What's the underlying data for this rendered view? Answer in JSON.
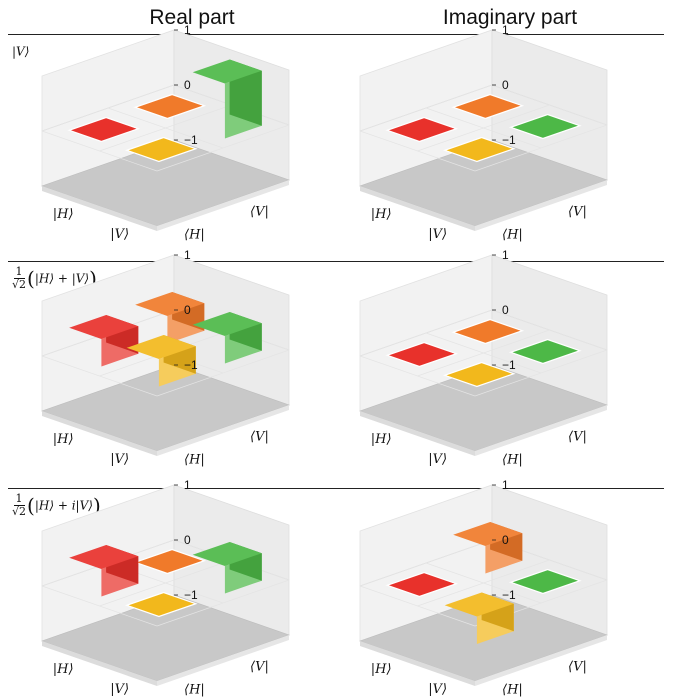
{
  "titles": {
    "real": "Real part",
    "imaginary": "Imaginary part"
  },
  "rows": [
    {
      "label_frac_num": "",
      "label_frac_den": "",
      "label_state": "|V⟩"
    },
    {
      "label_frac_num": "1",
      "label_frac_den": "√2",
      "label_state": "|H⟩ + |V⟩"
    },
    {
      "label_frac_num": "1",
      "label_frac_den": "√2",
      "label_state": "|H⟩ + i|V⟩"
    }
  ],
  "axis": {
    "row_labels": [
      "|H⟩",
      "|V⟩"
    ],
    "col_labels": [
      "⟨H|",
      "⟨V|"
    ],
    "z_ticks": [
      "1",
      "0",
      "−1"
    ]
  },
  "colors": {
    "HH": "#e8312b",
    "HV": "#f07a2a",
    "VH": "#f2b81c",
    "VV": "#4db847"
  },
  "chart_data": [
    {
      "type": "bar3d",
      "row": "|V⟩",
      "part": "real",
      "cells": {
        "HH": 0,
        "HV": 0,
        "VH": 0,
        "VV": 1
      },
      "zlim": [
        -1,
        1
      ]
    },
    {
      "type": "bar3d",
      "row": "|V⟩",
      "part": "imaginary",
      "cells": {
        "HH": 0,
        "HV": 0,
        "VH": 0,
        "VV": 0
      },
      "zlim": [
        -1,
        1
      ]
    },
    {
      "type": "bar3d",
      "row": "(|H⟩+|V⟩)/√2",
      "part": "real",
      "cells": {
        "HH": 0.5,
        "HV": 0.5,
        "VH": 0.5,
        "VV": 0.5
      },
      "zlim": [
        -1,
        1
      ]
    },
    {
      "type": "bar3d",
      "row": "(|H⟩+|V⟩)/√2",
      "part": "imaginary",
      "cells": {
        "HH": 0,
        "HV": 0,
        "VH": 0,
        "VV": 0
      },
      "zlim": [
        -1,
        1
      ]
    },
    {
      "type": "bar3d",
      "row": "(|H⟩+i|V⟩)/√2",
      "part": "real",
      "cells": {
        "HH": 0.5,
        "HV": 0,
        "VH": 0,
        "VV": 0.5
      },
      "zlim": [
        -1,
        1
      ]
    },
    {
      "type": "bar3d",
      "row": "(|H⟩+i|V⟩)/√2",
      "part": "imaginary",
      "cells": {
        "HH": 0,
        "HV": 0.5,
        "VH": -0.5,
        "VV": 0
      },
      "zlim": [
        -1,
        1
      ]
    }
  ]
}
